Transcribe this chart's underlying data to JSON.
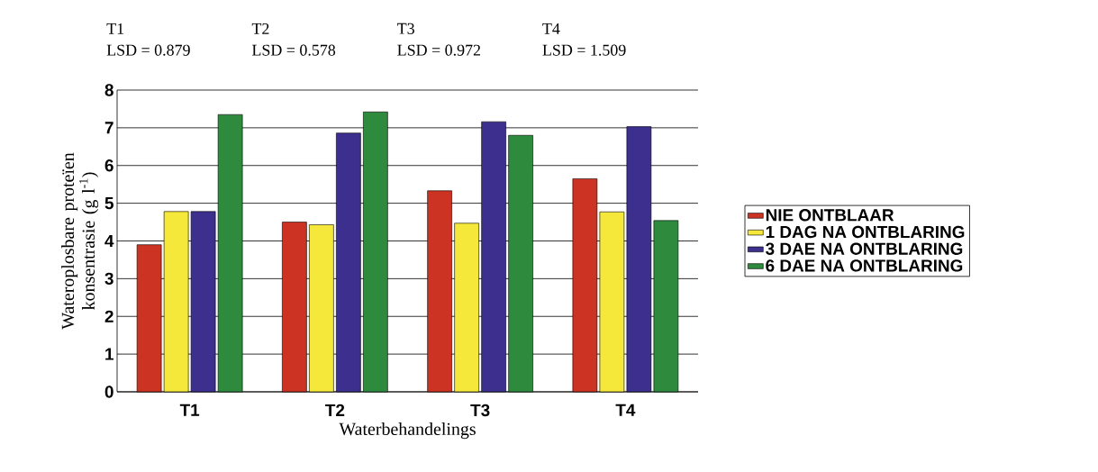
{
  "chart_data": {
    "type": "bar",
    "xlabel": "Waterbehandelings",
    "ylabel": "Wateroplosbare proteïen konsentrasie (g l$^{-1}$)",
    "categories": [
      "T1",
      "T2",
      "T3",
      "T4"
    ],
    "series": [
      {
        "name": "NIE ONTBLAAR",
        "color": "#cc3322",
        "values": [
          3.9,
          4.5,
          5.33,
          5.65
        ]
      },
      {
        "name": "1 DAG NA ONTBLARING",
        "color": "#f5e83a",
        "values": [
          4.78,
          4.43,
          4.47,
          4.77
        ]
      },
      {
        "name": "3 DAE NA ONTBLARING",
        "color": "#3c2f8e",
        "values": [
          4.78,
          6.86,
          7.16,
          7.03
        ]
      },
      {
        "name": "6 DAE NA ONTBLARING",
        "color": "#2e8b3e",
        "values": [
          7.35,
          7.42,
          6.8,
          4.54
        ]
      }
    ],
    "ylim": [
      0,
      8
    ],
    "yticks": [
      0,
      1,
      2,
      3,
      4,
      5,
      6,
      7,
      8
    ],
    "grid": "y",
    "legend": "right",
    "annotations": [
      "T1",
      "LSD = 0.879",
      "T2",
      "LSD = 0.578",
      "T3",
      "LSD = 0.972",
      "T4",
      "LSD = 1.509"
    ]
  }
}
